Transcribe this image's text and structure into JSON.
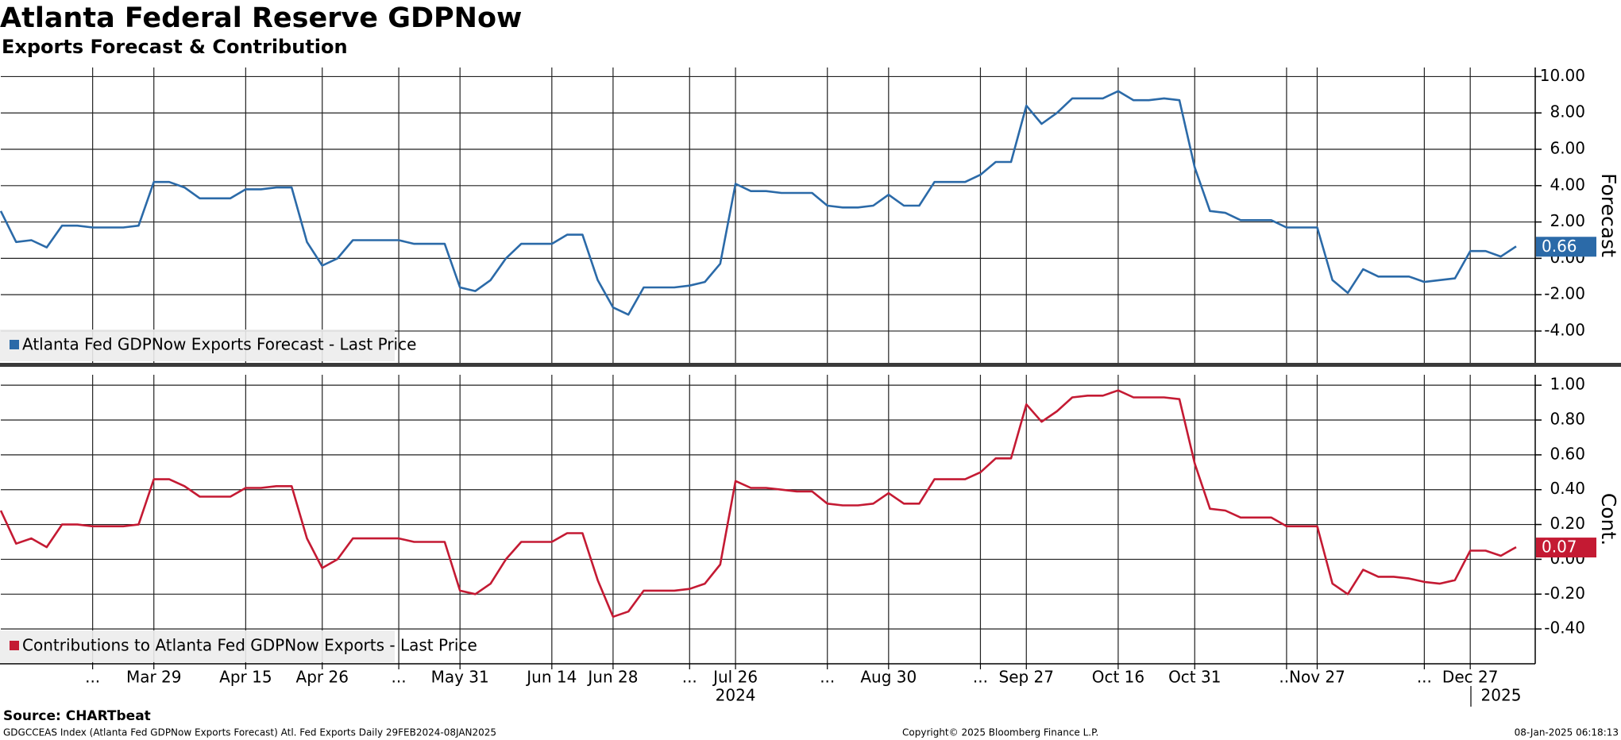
{
  "chart_data": [
    {
      "type": "line",
      "title": "Atlanta Federal Reserve GDPNow",
      "subtitle": "Exports Forecast & Contribution",
      "y_label": "Forecast",
      "ylim": [
        -5.75,
        10.5
      ],
      "yticks": [
        {
          "value": 10,
          "label": "10.00"
        },
        {
          "value": 8,
          "label": "8.00"
        },
        {
          "value": 6,
          "label": "6.00"
        },
        {
          "value": 4,
          "label": "4.00"
        },
        {
          "value": 2,
          "label": "2.00"
        },
        {
          "value": 0,
          "label": "0.00"
        },
        {
          "value": -2,
          "label": "-2.00"
        },
        {
          "value": -4,
          "label": "-4.00"
        }
      ],
      "grid": true,
      "legend": "bottom-left",
      "series": [
        {
          "name": "Atlanta Fed GDPNow Exports Forecast - Last Price",
          "color": "#2b6aa8",
          "values": [
            2.6,
            0.9,
            1.0,
            0.6,
            1.8,
            1.8,
            1.7,
            1.7,
            1.7,
            1.8,
            4.2,
            4.2,
            3.9,
            3.3,
            3.3,
            3.3,
            3.8,
            3.8,
            3.9,
            3.9,
            0.9,
            -0.4,
            0,
            1.0,
            1.0,
            1.0,
            1.0,
            0.8,
            0.8,
            0.8,
            -1.6,
            -1.8,
            -1.2,
            0,
            0.8,
            0.8,
            0.8,
            1.3,
            1.3,
            -1.2,
            -2.7,
            -3.1,
            -1.6,
            -1.6,
            -1.6,
            -1.5,
            -1.3,
            -0.3,
            4.1,
            3.7,
            3.7,
            3.6,
            3.6,
            3.6,
            2.9,
            2.8,
            2.8,
            2.9,
            3.5,
            2.9,
            2.9,
            4.2,
            4.2,
            4.2,
            4.6,
            5.3,
            5.3,
            8.4,
            7.4,
            8.0,
            8.8,
            8.8,
            8.8,
            9.2,
            8.7,
            8.7,
            8.8,
            8.7,
            5.0,
            2.6,
            2.5,
            2.1,
            2.1,
            2.1,
            1.7,
            1.7,
            1.7,
            -1.2,
            -1.9,
            -0.6,
            -1.0,
            -1.0,
            -1.0,
            -1.3,
            -1.2,
            -1.1,
            0.4,
            0.4,
            0.1,
            0.66
          ]
        }
      ]
    },
    {
      "type": "line",
      "y_label": "Cont.",
      "ylim": [
        -0.6,
        1.06
      ],
      "yticks": [
        {
          "value": 1,
          "label": "1.00"
        },
        {
          "value": 0.8,
          "label": "0.80"
        },
        {
          "value": 0.6,
          "label": "0.60"
        },
        {
          "value": 0.4,
          "label": "0.40"
        },
        {
          "value": 0.2,
          "label": "0.20"
        },
        {
          "value": 0,
          "label": "0.00"
        },
        {
          "value": -0.2,
          "label": "-0.20"
        },
        {
          "value": -0.4,
          "label": "-0.40"
        }
      ],
      "grid": true,
      "legend": "bottom-left",
      "categories": [
        null,
        null,
        null,
        null,
        null,
        null,
        "...",
        null,
        null,
        null,
        "Mar 29",
        null,
        null,
        null,
        null,
        null,
        "Apr 15",
        null,
        null,
        null,
        null,
        "Apr 26",
        null,
        null,
        null,
        null,
        "...",
        null,
        null,
        null,
        "May 31",
        null,
        null,
        null,
        null,
        null,
        "Jun 14",
        null,
        null,
        null,
        "Jun 28",
        null,
        null,
        null,
        null,
        "...",
        null,
        null,
        "Jul 26",
        null,
        null,
        null,
        null,
        null,
        "...",
        null,
        null,
        null,
        "Aug 30",
        null,
        null,
        null,
        null,
        null,
        "...",
        null,
        null,
        "Sep 27",
        null,
        null,
        null,
        null,
        null,
        "Oct 16",
        null,
        null,
        null,
        null,
        "Oct 31",
        null,
        null,
        null,
        null,
        null,
        "...",
        null,
        "Nov 27",
        null,
        null,
        null,
        null,
        null,
        null,
        "...",
        null,
        null,
        "Dec 27",
        null,
        null,
        null
      ],
      "year_labels": [
        "2024",
        "2025"
      ],
      "series": [
        {
          "name": "Contributions to Atlanta Fed GDPNow Exports - Last Price",
          "color": "#c41a33",
          "values": [
            0.28,
            0.09,
            0.12,
            0.07,
            0.2,
            0.2,
            0.19,
            0.19,
            0.19,
            0.2,
            0.46,
            0.46,
            0.42,
            0.36,
            0.36,
            0.36,
            0.41,
            0.41,
            0.42,
            0.42,
            0.12,
            -0.05,
            0.0,
            0.12,
            0.12,
            0.12,
            0.12,
            0.1,
            0.1,
            0.1,
            -0.18,
            -0.2,
            -0.14,
            0.0,
            0.1,
            0.1,
            0.1,
            0.15,
            0.15,
            -0.12,
            -0.33,
            -0.3,
            -0.18,
            -0.18,
            -0.18,
            -0.17,
            -0.14,
            -0.03,
            0.45,
            0.41,
            0.41,
            0.4,
            0.39,
            0.39,
            0.32,
            0.31,
            0.31,
            0.32,
            0.38,
            0.32,
            0.32,
            0.46,
            0.46,
            0.46,
            0.5,
            0.58,
            0.58,
            0.89,
            0.79,
            0.85,
            0.93,
            0.94,
            0.94,
            0.97,
            0.93,
            0.93,
            0.93,
            0.92,
            0.55,
            0.29,
            0.28,
            0.24,
            0.24,
            0.24,
            0.19,
            0.19,
            0.19,
            -0.14,
            -0.2,
            -0.06,
            -0.1,
            -0.1,
            -0.11,
            -0.13,
            -0.14,
            -0.12,
            0.05,
            0.05,
            0.02,
            0.07
          ]
        }
      ]
    }
  ],
  "footer": {
    "source": "Source: CHARTbeat",
    "info": "GDGCCEAS Index (Atlanta Fed GDPNow Exports Forecast) Atl. Fed Exports  Daily 29FEB2024-08JAN2025",
    "copyright": "Copyright© 2025 Bloomberg Finance L.P.",
    "timestamp": "08-Jan-2025 06:18:13"
  }
}
